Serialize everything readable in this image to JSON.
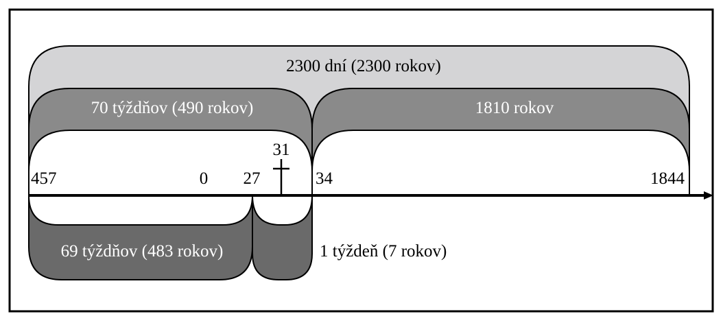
{
  "diagram": {
    "spans": {
      "total": "2300 dní (2300 rokov)",
      "seventy_weeks": "70 týždňov (490 rokov)",
      "remainder": "1810 rokov",
      "sixty_nine_weeks": "69 týždňov (483 rokov)",
      "one_week": "1 týždeň (7 rokov)"
    },
    "years": {
      "start": "457",
      "zero": "0",
      "baptism": "27",
      "crucifixion": "31",
      "end_of_weeks": "34",
      "end": "1844"
    },
    "colors": {
      "total_band": "#d4d4d6",
      "seventy_band": "#8a8a8a",
      "remainder_band": "#8a8a8a",
      "sixty_nine_band": "#6a6a6a",
      "one_week_band": "#6a6a6a",
      "axis": "#000000"
    },
    "icons": {
      "crucifixion": "cross-icon",
      "axis_arrow": "arrow-right-icon"
    }
  }
}
